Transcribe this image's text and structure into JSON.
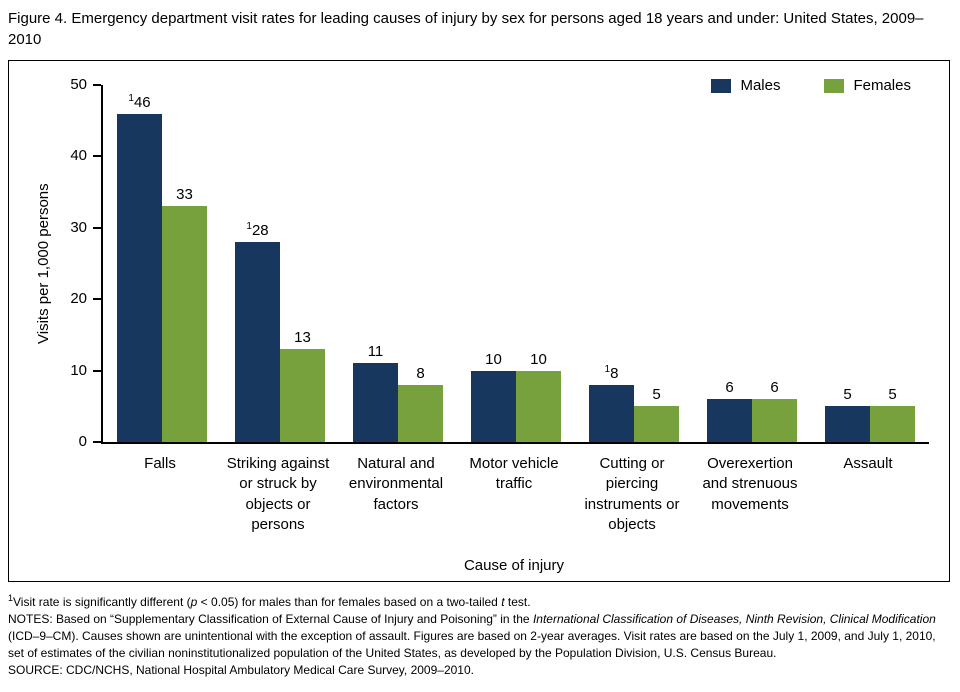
{
  "title": "Figure 4. Emergency department visit rates for leading causes of injury by sex for persons aged 18 years and under: United States, 2009–2010",
  "chart_data": {
    "type": "bar",
    "title": "Figure 4. Emergency department visit rates for leading causes of injury by sex for persons aged 18 years and under: United States, 2009–2010",
    "categories": [
      "Falls",
      "Striking against or struck by objects or persons",
      "Natural and environmental factors",
      "Motor vehicle traffic",
      "Cutting or piercing instruments or objects",
      "Overexertion and strenuous movements",
      "Assault"
    ],
    "series": [
      {
        "name": "Males",
        "color": "#17375E",
        "values": [
          46,
          28,
          11,
          10,
          8,
          6,
          5
        ],
        "labels": [
          {
            "sup": "1",
            "v": "46"
          },
          {
            "sup": "1",
            "v": "28"
          },
          {
            "v": "11"
          },
          {
            "v": "10"
          },
          {
            "sup": "1",
            "v": "8"
          },
          {
            "v": "6"
          },
          {
            "v": "5"
          }
        ]
      },
      {
        "name": "Females",
        "color": "#77A13C",
        "values": [
          33,
          13,
          8,
          10,
          5,
          6,
          5
        ],
        "labels": [
          {
            "v": "33"
          },
          {
            "v": "13"
          },
          {
            "v": "8"
          },
          {
            "v": "10"
          },
          {
            "v": "5"
          },
          {
            "v": "6"
          },
          {
            "v": "5"
          }
        ]
      }
    ],
    "ylabel": "Visits per 1,000 persons",
    "xlabel": "Cause of injury",
    "ylim": [
      0,
      50
    ],
    "yticks": [
      0,
      10,
      20,
      30,
      40,
      50
    ],
    "grid": false,
    "legend_position": "top-right"
  },
  "footnotes": [
    [
      {
        "t": "1",
        "sup": true
      },
      {
        "t": "Visit rate is significantly different ("
      },
      {
        "t": "p",
        "i": true
      },
      {
        "t": " < 0.05) for males than for females based on a two-tailed "
      },
      {
        "t": "t",
        "i": true
      },
      {
        "t": " test."
      }
    ],
    [
      {
        "t": "NOTES: Based on “Supplementary Classification of External Cause of Injury and Poisoning” in the "
      },
      {
        "t": "International Classification of Diseases, Ninth Revision, Clinical Modification",
        "i": true
      },
      {
        "t": " (ICD–9–CM). Causes shown are unintentional with the exception of assault. Figures are based on 2-year averages. Visit rates are based on the July 1, 2009, and July 1, 2010, set of estimates of the civilian noninstitutionalized population of the United States, as developed by the Population Division, U.S. Census Bureau."
      }
    ],
    [
      {
        "t": "SOURCE: CDC/NCHS, National Hospital Ambulatory Medical Care Survey, 2009–2010."
      }
    ]
  ]
}
